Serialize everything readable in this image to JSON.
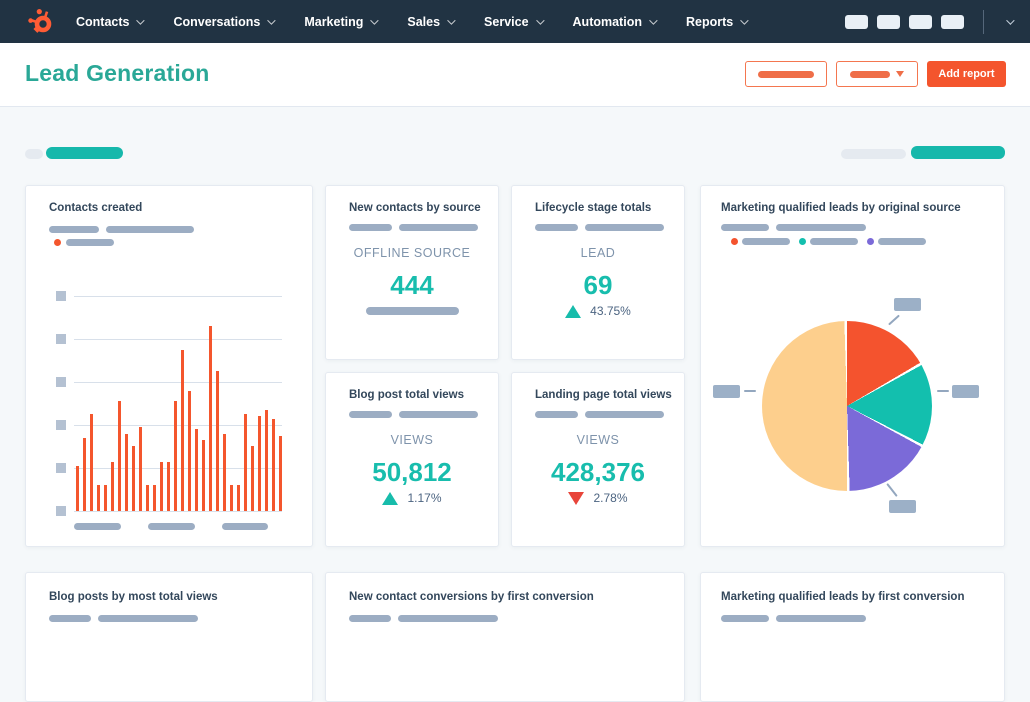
{
  "nav": {
    "menu": [
      {
        "label": "Contacts"
      },
      {
        "label": "Conversations"
      },
      {
        "label": "Marketing"
      },
      {
        "label": "Sales"
      },
      {
        "label": "Service"
      },
      {
        "label": "Automation"
      },
      {
        "label": "Reports"
      }
    ]
  },
  "header": {
    "title": "Lead Generation",
    "add_report_label": "Add report"
  },
  "colors": {
    "navbar_bg": "#213343",
    "brand_orange": "#ff5c35",
    "accent_orange": "#f4562d",
    "accent_teal": "#16b8ab",
    "title_teal": "#2aa897",
    "value_teal": "#18bdad",
    "negative_red": "#e8453a",
    "card_title_navy": "#33475b",
    "placeholder_gray": "#9cadc3",
    "page_bg": "#f5f8fa"
  },
  "cards": {
    "contacts_created": {
      "title": "Contacts created"
    },
    "new_contacts_by_source": {
      "title": "New contacts by source",
      "metric_label": "OFFLINE SOURCE",
      "value": "444"
    },
    "lifecycle_stage_totals": {
      "title": "Lifecycle stage totals",
      "metric_label": "LEAD",
      "value": "69",
      "delta": "43.75%",
      "delta_direction": "up"
    },
    "mql_by_original_source": {
      "title": "Marketing qualified leads by original source"
    },
    "blog_post_total_views": {
      "title": "Blog post total views",
      "metric_label": "VIEWS",
      "value": "50,812",
      "delta": "1.17%",
      "delta_direction": "up"
    },
    "landing_page_total_views": {
      "title": "Landing page total views",
      "metric_label": "VIEWS",
      "value": "428,376",
      "delta": "2.78%",
      "delta_direction": "down"
    },
    "blog_posts_by_most_total_views": {
      "title": "Blog posts by most total views"
    },
    "new_contact_conversions": {
      "title": "New contact conversions by first conversion"
    },
    "mql_by_first_conversion": {
      "title": "Marketing qualified leads by first conversion"
    }
  },
  "chart_data": [
    {
      "type": "bar",
      "title": "Contacts created",
      "bar_color": "#f4562d",
      "n_bars": 30,
      "values_pct_of_chart_max": [
        21,
        34,
        45,
        12,
        12,
        23,
        51,
        36,
        30,
        39,
        12,
        12,
        23,
        23,
        51,
        75,
        56,
        38,
        33,
        86,
        65,
        36,
        12,
        12,
        45,
        30,
        44,
        47,
        43,
        35
      ],
      "gridlines": 6,
      "axis_tick_labels_redacted": true,
      "legend": [
        {
          "color": "#f4562d",
          "label_redacted": true
        }
      ]
    },
    {
      "type": "pie",
      "title": "Marketing qualified leads by original source",
      "slices": [
        {
          "color": "#f4532e",
          "pct": 17,
          "in_legend": true
        },
        {
          "color": "#13bfae",
          "pct": 16,
          "in_legend": true
        },
        {
          "color": "#7b6ad8",
          "pct": 17,
          "in_legend": true
        },
        {
          "color": "#fdcf8d",
          "pct": 50,
          "in_legend": false
        }
      ],
      "labels_redacted": true,
      "legend_position": "top"
    }
  ]
}
